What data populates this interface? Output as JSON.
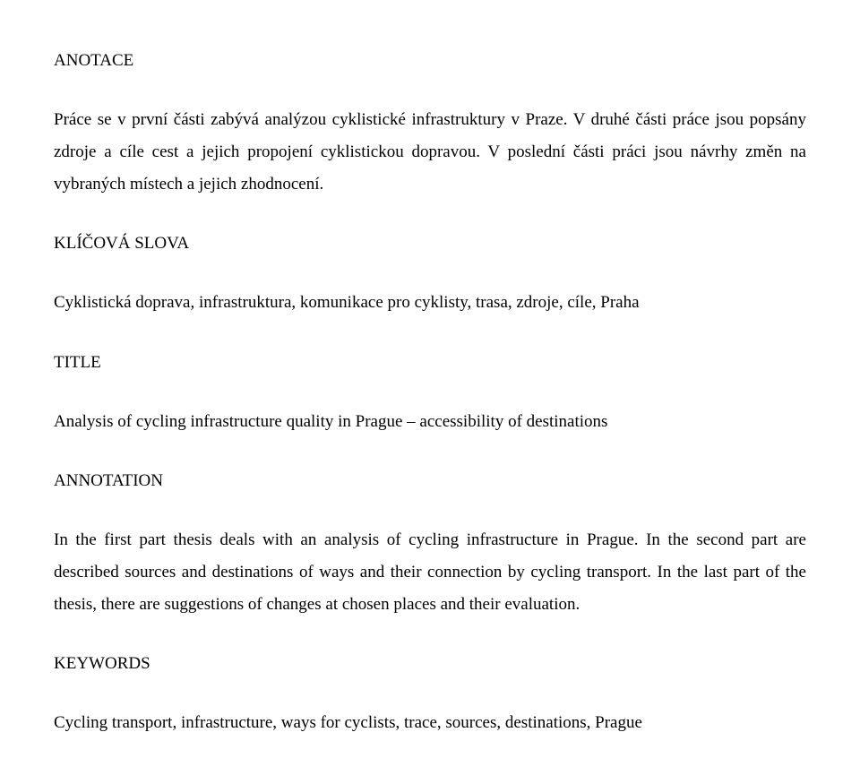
{
  "sections": {
    "anotace": {
      "heading": "ANOTACE",
      "paragraph": "Práce se v první části zabývá analýzou cyklistické infrastruktury v Praze. V druhé části práce jsou popsány zdroje a cíle cest a jejich propojení cyklistickou dopravou. V poslední části práci jsou návrhy změn na vybraných místech a jejich zhodnocení."
    },
    "klicova_slova": {
      "heading": "KLÍČOVÁ SLOVA",
      "paragraph": "Cyklistická doprava, infrastruktura, komunikace pro cyklisty, trasa, zdroje, cíle, Praha"
    },
    "title": {
      "heading": "TITLE",
      "paragraph": "Analysis of cycling infrastructure quality in Prague – accessibility of destinations"
    },
    "annotation": {
      "heading": "ANNOTATION",
      "paragraph": "In the first part thesis deals with an analysis of cycling infrastructure in Prague. In the second part are described sources and destinations of ways and their connection by cycling transport. In the last part of the thesis, there are suggestions of changes at chosen places and their evaluation."
    },
    "keywords": {
      "heading": "KEYWORDS",
      "paragraph": "Cycling transport, infrastructure, ways for cyclists, trace, sources, destinations, Prague"
    }
  }
}
